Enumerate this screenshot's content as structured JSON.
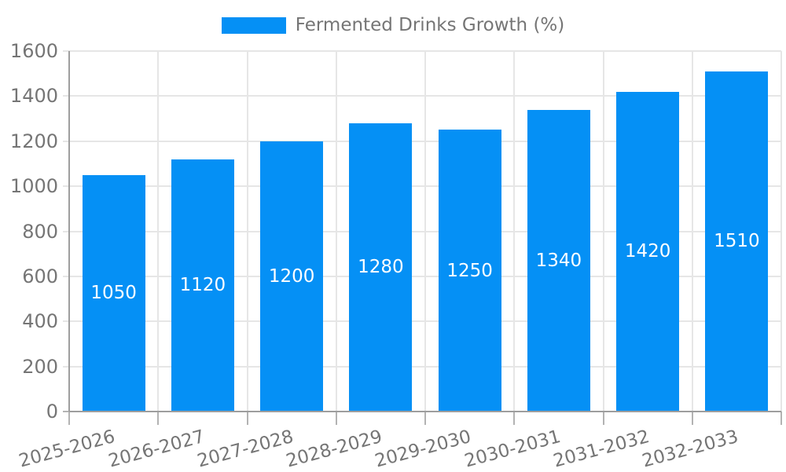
{
  "legend": {
    "label": "Fermented Drinks Growth (%)"
  },
  "colors": {
    "bar": "#0590f5",
    "bar_label": "#ffffff",
    "axis_text": "#757575",
    "grid": "#e6e6e6",
    "axis_line": "#9e9e9e",
    "tick": "#b3b3b3"
  },
  "chart_data": {
    "type": "bar",
    "title": "",
    "categories": [
      "2025-2026",
      "2026-2027",
      "2027-2028",
      "2028-2029",
      "2029-2030",
      "2030-2031",
      "2031-2032",
      "2032-2033"
    ],
    "series": [
      {
        "name": "Fermented Drinks Growth (%)",
        "values": [
          1050,
          1120,
          1200,
          1280,
          1250,
          1340,
          1420,
          1510
        ]
      }
    ],
    "value_labels": [
      "1050",
      "1120",
      "1200",
      "1280",
      "1250",
      "1340",
      "1420",
      "1510"
    ],
    "value_label_position": "inside-center",
    "xlabel": "",
    "ylabel": "",
    "ylim": [
      0,
      1600
    ],
    "yticks": [
      0,
      200,
      400,
      600,
      800,
      1000,
      1200,
      1400,
      1600
    ],
    "grid": true,
    "legend_position": "top-center"
  }
}
